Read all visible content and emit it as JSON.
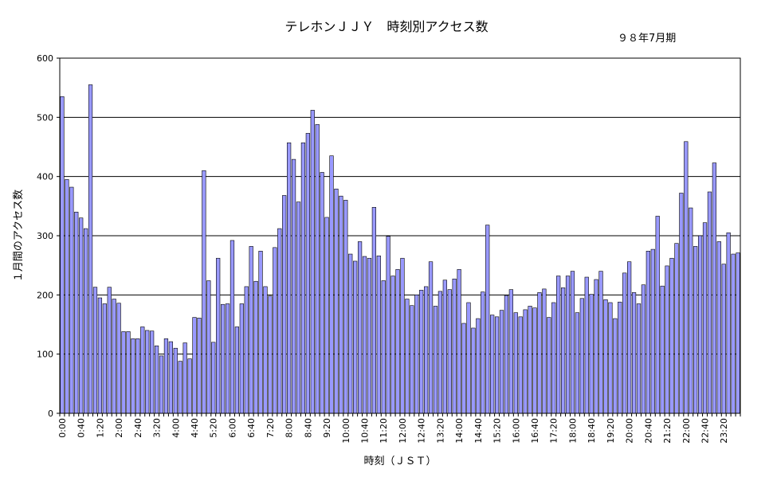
{
  "chart_title": "テレホンＪＪＹ　時刻別アクセス数",
  "period_label": "９８年7月期",
  "chart_data": {
    "type": "bar",
    "title": "テレホンＪＪＹ　時刻別アクセス数",
    "subtitle": "９８年7月期",
    "xlabel": "時刻（ＪＳＴ）",
    "ylabel": "１月間のアクセス数",
    "ylim": [
      0,
      600
    ],
    "yticks": [
      0,
      100,
      200,
      300,
      400,
      500,
      600
    ],
    "grid": true,
    "bar_color": "#9999ff",
    "x_tick_labels": [
      "0:00",
      "0:40",
      "1:20",
      "2:00",
      "2:40",
      "3:20",
      "4:00",
      "4:40",
      "5:20",
      "6:00",
      "6:40",
      "7:20",
      "8:00",
      "8:40",
      "9:20",
      "10:00",
      "10:40",
      "11:20",
      "12:00",
      "12:40",
      "13:20",
      "14:00",
      "14:40",
      "15:20",
      "16:00",
      "16:40",
      "17:20",
      "18:00",
      "18:40",
      "19:20",
      "20:00",
      "20:40",
      "21:20",
      "22:00",
      "22:40",
      "23:20"
    ],
    "x_tick_every": 4,
    "interval_minutes": 10,
    "values": [
      535,
      395,
      382,
      340,
      330,
      312,
      555,
      213,
      195,
      185,
      213,
      193,
      186,
      138,
      138,
      126,
      126,
      146,
      140,
      139,
      114,
      97,
      126,
      121,
      110,
      88,
      119,
      92,
      162,
      161,
      410,
      224,
      120,
      262,
      184,
      185,
      292,
      146,
      185,
      214,
      282,
      223,
      274,
      214,
      198,
      280,
      312,
      368,
      457,
      429,
      357,
      457,
      473,
      512,
      488,
      407,
      331,
      435,
      379,
      367,
      360,
      269,
      257,
      290,
      265,
      262,
      348,
      266,
      224,
      299,
      232,
      243,
      262,
      193,
      182,
      200,
      208,
      214,
      256,
      181,
      206,
      225,
      209,
      227,
      243,
      152,
      187,
      144,
      160,
      205,
      318,
      166,
      163,
      174,
      199,
      209,
      170,
      163,
      175,
      181,
      178,
      204,
      210,
      162,
      187,
      232,
      212,
      232,
      240,
      170,
      194,
      230,
      201,
      226,
      240,
      192,
      187,
      160,
      188,
      237,
      256,
      204,
      185,
      217,
      274,
      277,
      333,
      215,
      249,
      262,
      287,
      372,
      459,
      347,
      282,
      300,
      322,
      374,
      423,
      290,
      252,
      305,
      269,
      271
    ]
  }
}
